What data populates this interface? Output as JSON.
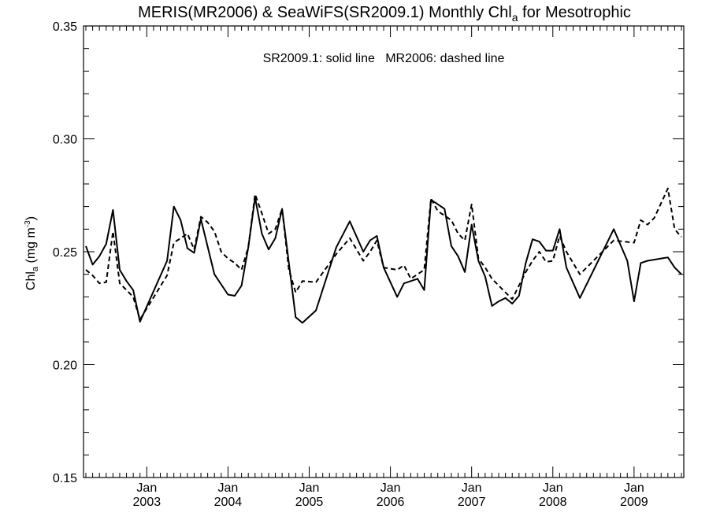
{
  "chart_data": {
    "type": "line",
    "title_main": "MERIS(MR2006) & SeaWiFS(SR2009.1) Monthly Chl",
    "title_sub": "a",
    "title_tail": " for Mesotrophic",
    "legend_note": "SR2009.1: solid line   MR2006: dashed line",
    "ylabel_main": "Chl",
    "ylabel_sub": "a",
    "ylabel_unit": " (mg m",
    "ylabel_sup": "-3",
    "ylabel_close": ")",
    "ylim": [
      0.15,
      0.35
    ],
    "xlim": [
      "2002-04",
      "2009-08"
    ],
    "y_ticks": [
      "0.15",
      "0.20",
      "0.25",
      "0.30",
      "0.35"
    ],
    "x_ticks": [
      {
        "month": "Jan",
        "year": "2003",
        "date": "2003-01"
      },
      {
        "month": "Jan",
        "year": "2004",
        "date": "2004-01"
      },
      {
        "month": "Jan",
        "year": "2005",
        "date": "2005-01"
      },
      {
        "month": "Jan",
        "year": "2006",
        "date": "2006-01"
      },
      {
        "month": "Jan",
        "year": "2007",
        "date": "2007-01"
      },
      {
        "month": "Jan",
        "year": "2008",
        "date": "2008-01"
      },
      {
        "month": "Jan",
        "year": "2009",
        "date": "2009-01"
      }
    ],
    "series": [
      {
        "style": "solid",
        "points": [
          [
            "2002-04",
            0.2525
          ],
          [
            "2002-05",
            0.2443
          ],
          [
            "2002-06",
            0.248
          ],
          [
            "2002-07",
            0.2535
          ],
          [
            "2002-08",
            0.2685
          ],
          [
            "2002-09",
            0.242
          ],
          [
            "2002-10",
            0.237
          ],
          [
            "2002-11",
            0.233
          ],
          [
            "2002-12",
            0.219
          ],
          [
            "2003-04",
            0.246
          ],
          [
            "2003-05",
            0.27
          ],
          [
            "2003-06",
            0.264
          ],
          [
            "2003-07",
            0.2515
          ],
          [
            "2003-08",
            0.2495
          ],
          [
            "2003-09",
            0.2645
          ],
          [
            "2003-11",
            0.24
          ],
          [
            "2004-01",
            0.231
          ],
          [
            "2004-02",
            0.2305
          ],
          [
            "2004-03",
            0.235
          ],
          [
            "2004-04",
            0.252
          ],
          [
            "2004-05",
            0.274
          ],
          [
            "2004-06",
            0.258
          ],
          [
            "2004-07",
            0.251
          ],
          [
            "2004-08",
            0.256
          ],
          [
            "2004-09",
            0.269
          ],
          [
            "2004-10",
            0.245
          ],
          [
            "2004-11",
            0.221
          ],
          [
            "2004-12",
            0.2185
          ],
          [
            "2005-02",
            0.224
          ],
          [
            "2005-05",
            0.252
          ],
          [
            "2005-07",
            0.2635
          ],
          [
            "2005-09",
            0.25
          ],
          [
            "2005-10",
            0.255
          ],
          [
            "2005-11",
            0.257
          ],
          [
            "2005-12",
            0.243
          ],
          [
            "2006-02",
            0.23
          ],
          [
            "2006-03",
            0.236
          ],
          [
            "2006-05",
            0.238
          ],
          [
            "2006-06",
            0.233
          ],
          [
            "2006-07",
            0.273
          ],
          [
            "2006-08",
            0.271
          ],
          [
            "2006-09",
            0.269
          ],
          [
            "2006-10",
            0.2525
          ],
          [
            "2006-11",
            0.248
          ],
          [
            "2006-12",
            0.241
          ],
          [
            "2007-01",
            0.262
          ],
          [
            "2007-02",
            0.246
          ],
          [
            "2007-03",
            0.239
          ],
          [
            "2007-04",
            0.226
          ],
          [
            "2007-05",
            0.228
          ],
          [
            "2007-06",
            0.2295
          ],
          [
            "2007-07",
            0.227
          ],
          [
            "2007-08",
            0.2305
          ],
          [
            "2007-09",
            0.245
          ],
          [
            "2007-10",
            0.2555
          ],
          [
            "2007-11",
            0.2545
          ],
          [
            "2007-12",
            0.2505
          ],
          [
            "2008-01",
            0.2505
          ],
          [
            "2008-02",
            0.26
          ],
          [
            "2008-03",
            0.243
          ],
          [
            "2008-05",
            0.2295
          ],
          [
            "2008-10",
            0.26
          ],
          [
            "2008-12",
            0.246
          ],
          [
            "2009-01",
            0.228
          ],
          [
            "2009-02",
            0.245
          ],
          [
            "2009-03",
            0.246
          ],
          [
            "2009-05",
            0.247
          ],
          [
            "2009-06",
            0.2475
          ],
          [
            "2009-07",
            0.243
          ],
          [
            "2009-08",
            0.24
          ]
        ]
      },
      {
        "style": "dashed",
        "points": [
          [
            "2002-04",
            0.242
          ],
          [
            "2002-05",
            0.2395
          ],
          [
            "2002-06",
            0.236
          ],
          [
            "2002-07",
            0.2365
          ],
          [
            "2002-08",
            0.259
          ],
          [
            "2002-09",
            0.236
          ],
          [
            "2002-10",
            0.233
          ],
          [
            "2002-11",
            0.23
          ],
          [
            "2002-12",
            0.22
          ],
          [
            "2003-04",
            0.2395
          ],
          [
            "2003-05",
            0.254
          ],
          [
            "2003-06",
            0.256
          ],
          [
            "2003-07",
            0.258
          ],
          [
            "2003-08",
            0.251
          ],
          [
            "2003-09",
            0.2655
          ],
          [
            "2003-10",
            0.263
          ],
          [
            "2003-11",
            0.259
          ],
          [
            "2003-12",
            0.25
          ],
          [
            "2004-01",
            0.247
          ],
          [
            "2004-02",
            0.245
          ],
          [
            "2004-03",
            0.242
          ],
          [
            "2004-04",
            0.252
          ],
          [
            "2004-05",
            0.2755
          ],
          [
            "2004-06",
            0.267
          ],
          [
            "2004-07",
            0.258
          ],
          [
            "2004-08",
            0.26
          ],
          [
            "2004-09",
            0.269
          ],
          [
            "2004-10",
            0.242
          ],
          [
            "2004-11",
            0.232
          ],
          [
            "2004-12",
            0.237
          ],
          [
            "2005-02",
            0.2365
          ],
          [
            "2005-05",
            0.249
          ],
          [
            "2005-07",
            0.256
          ],
          [
            "2005-09",
            0.246
          ],
          [
            "2005-10",
            0.25
          ],
          [
            "2005-11",
            0.255
          ],
          [
            "2005-12",
            0.243
          ],
          [
            "2006-02",
            0.242
          ],
          [
            "2006-03",
            0.244
          ],
          [
            "2006-04",
            0.238
          ],
          [
            "2006-05",
            0.24
          ],
          [
            "2006-06",
            0.242
          ],
          [
            "2006-07",
            0.2735
          ],
          [
            "2006-08",
            0.268
          ],
          [
            "2006-09",
            0.266
          ],
          [
            "2006-10",
            0.264
          ],
          [
            "2006-11",
            0.258
          ],
          [
            "2006-12",
            0.255
          ],
          [
            "2007-01",
            0.271
          ],
          [
            "2007-02",
            0.247
          ],
          [
            "2007-03",
            0.243
          ],
          [
            "2007-04",
            0.238
          ],
          [
            "2007-06",
            0.232
          ],
          [
            "2007-07",
            0.229
          ],
          [
            "2007-09",
            0.241
          ],
          [
            "2007-10",
            0.246
          ],
          [
            "2007-11",
            0.25
          ],
          [
            "2007-12",
            0.2455
          ],
          [
            "2008-01",
            0.246
          ],
          [
            "2008-02",
            0.257
          ],
          [
            "2008-03",
            0.25
          ],
          [
            "2008-05",
            0.24
          ],
          [
            "2008-10",
            0.255
          ],
          [
            "2009-01",
            0.254
          ],
          [
            "2009-02",
            0.264
          ],
          [
            "2009-03",
            0.262
          ],
          [
            "2009-04",
            0.265
          ],
          [
            "2009-06",
            0.278
          ],
          [
            "2009-07",
            0.26
          ],
          [
            "2009-08",
            0.2565
          ]
        ]
      }
    ]
  }
}
